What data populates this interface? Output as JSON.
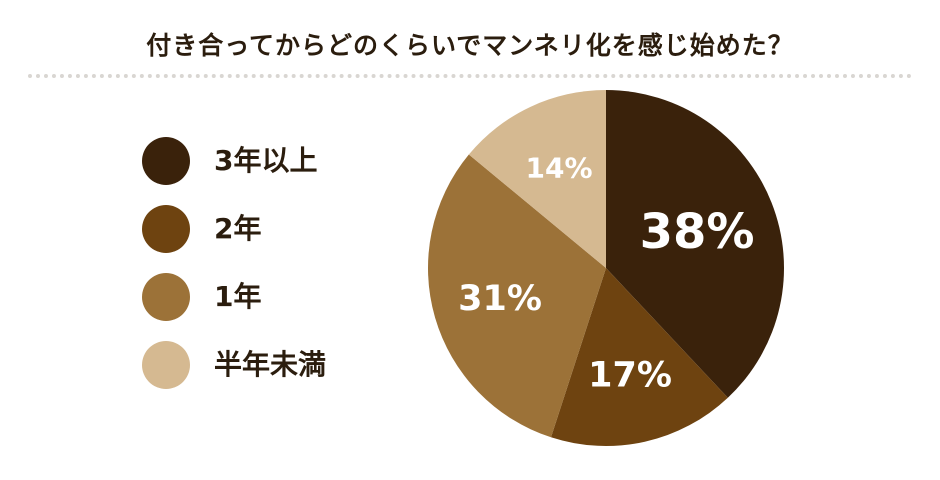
{
  "chart_data": {
    "type": "pie",
    "title": "付き合ってからどのくらいでマンネリ化を感じ始めた？",
    "legend_position": "left",
    "start_angle": "12 o'clock, clockwise",
    "slices": [
      {
        "label": "3年以上",
        "value": 38,
        "display": "38%",
        "color": "#3a220b",
        "label_size": "large"
      },
      {
        "label": "2年",
        "value": 17,
        "display": "17%",
        "color": "#6e4310",
        "label_size": "medium"
      },
      {
        "label": "1年",
        "value": 31,
        "display": "31%",
        "color": "#9c7238",
        "label_size": "medium"
      },
      {
        "label": "半年未満",
        "value": 14,
        "display": "14%",
        "color": "#d5b991",
        "label_size": "small"
      }
    ]
  }
}
